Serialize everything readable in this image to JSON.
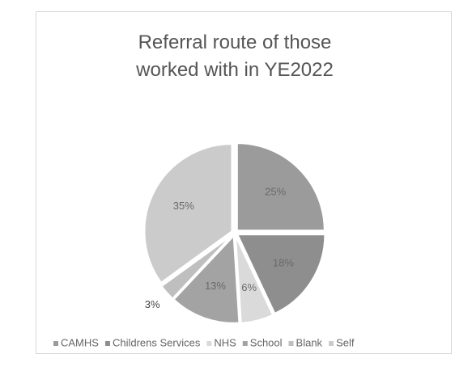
{
  "chart_data": {
    "type": "pie",
    "title": "Referral route of those worked with in YE2022",
    "categories": [
      "CAMHS",
      "Childrens Services",
      "NHS",
      "School",
      "Blank",
      "Self"
    ],
    "values": [
      25,
      18,
      6,
      13,
      3,
      35
    ],
    "value_labels": [
      "25%",
      "18%",
      "6%",
      "13%",
      "3%",
      "35%"
    ],
    "colors": [
      "#9b9b9b",
      "#8e8e8e",
      "#dadada",
      "#a3a3a3",
      "#bfbfbf",
      "#cbcbcb"
    ],
    "legend": "bottom"
  }
}
